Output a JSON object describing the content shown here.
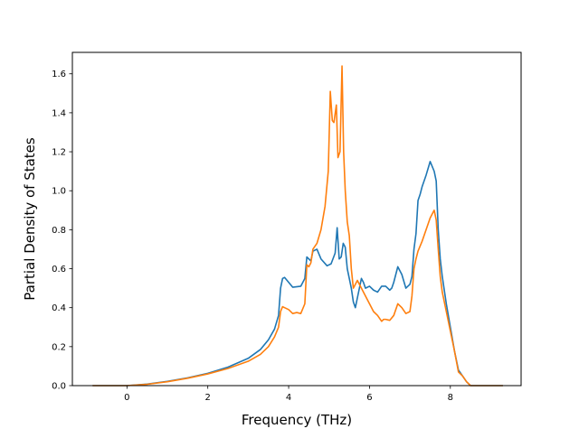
{
  "chart_data": {
    "type": "line",
    "title": "",
    "xlabel": "Frequency (THz)",
    "ylabel": "Partial Density of States",
    "xlim": [
      -1.35,
      9.75
    ],
    "ylim": [
      0.0,
      1.71
    ],
    "xticks": [
      0,
      2,
      4,
      6,
      8
    ],
    "yticks": [
      0.0,
      0.2,
      0.4,
      0.6,
      0.8,
      1.0,
      1.2,
      1.4,
      1.6
    ],
    "xtick_labels": [
      "0",
      "2",
      "4",
      "6",
      "8"
    ],
    "ytick_labels": [
      "0.0",
      "0.2",
      "0.4",
      "0.6",
      "0.8",
      "1.0",
      "1.2",
      "1.4",
      "1.6"
    ],
    "grid": false,
    "legend": "none",
    "series": [
      {
        "color": "#1f77b4",
        "x": [
          -0.85,
          -0.5,
          0.0,
          0.5,
          1.0,
          1.5,
          2.0,
          2.5,
          3.0,
          3.3,
          3.5,
          3.65,
          3.75,
          3.8,
          3.85,
          3.9,
          4.0,
          4.1,
          4.3,
          4.4,
          4.45,
          4.5,
          4.55,
          4.6,
          4.7,
          4.8,
          4.95,
          5.05,
          5.15,
          5.2,
          5.25,
          5.3,
          5.35,
          5.4,
          5.45,
          5.5,
          5.55,
          5.6,
          5.65,
          5.7,
          5.8,
          5.85,
          5.9,
          6.0,
          6.1,
          6.2,
          6.3,
          6.4,
          6.5,
          6.55,
          6.6,
          6.7,
          6.8,
          6.9,
          7.0,
          7.05,
          7.1,
          7.15,
          7.2,
          7.25,
          7.3,
          7.4,
          7.5,
          7.6,
          7.65,
          7.7,
          7.75,
          7.8,
          7.9,
          8.0,
          8.1,
          8.2,
          8.3,
          8.4,
          8.5,
          8.6,
          9.0,
          9.3
        ],
        "y": [
          0.0,
          0.0,
          0.0,
          0.008,
          0.022,
          0.04,
          0.063,
          0.095,
          0.14,
          0.185,
          0.235,
          0.29,
          0.36,
          0.5,
          0.55,
          0.555,
          0.53,
          0.505,
          0.51,
          0.55,
          0.66,
          0.65,
          0.64,
          0.69,
          0.7,
          0.65,
          0.615,
          0.625,
          0.68,
          0.81,
          0.65,
          0.66,
          0.73,
          0.71,
          0.6,
          0.55,
          0.5,
          0.43,
          0.4,
          0.45,
          0.55,
          0.53,
          0.5,
          0.51,
          0.49,
          0.48,
          0.51,
          0.51,
          0.49,
          0.5,
          0.53,
          0.61,
          0.57,
          0.5,
          0.52,
          0.56,
          0.7,
          0.78,
          0.95,
          0.98,
          1.02,
          1.08,
          1.15,
          1.1,
          1.05,
          0.8,
          0.65,
          0.56,
          0.42,
          0.3,
          0.18,
          0.08,
          0.05,
          0.02,
          0.0,
          0.0,
          0.0,
          0.0
        ]
      },
      {
        "color": "#ff7f0e",
        "x": [
          -0.85,
          -0.5,
          0.0,
          0.5,
          1.0,
          1.5,
          2.0,
          2.5,
          3.0,
          3.3,
          3.5,
          3.65,
          3.75,
          3.8,
          3.85,
          3.9,
          4.0,
          4.1,
          4.2,
          4.3,
          4.4,
          4.45,
          4.5,
          4.55,
          4.6,
          4.7,
          4.8,
          4.9,
          4.98,
          5.03,
          5.08,
          5.12,
          5.18,
          5.22,
          5.27,
          5.32,
          5.36,
          5.4,
          5.45,
          5.5,
          5.55,
          5.6,
          5.7,
          5.8,
          5.9,
          6.0,
          6.1,
          6.2,
          6.3,
          6.35,
          6.4,
          6.5,
          6.6,
          6.7,
          6.8,
          6.9,
          7.0,
          7.05,
          7.1,
          7.15,
          7.2,
          7.3,
          7.4,
          7.5,
          7.6,
          7.65,
          7.7,
          7.75,
          7.8,
          7.9,
          8.0,
          8.1,
          8.2,
          8.3,
          8.4,
          8.5,
          8.6,
          9.0,
          9.3
        ],
        "y": [
          0.0,
          0.0,
          0.0,
          0.007,
          0.02,
          0.038,
          0.06,
          0.088,
          0.125,
          0.16,
          0.2,
          0.25,
          0.3,
          0.38,
          0.405,
          0.4,
          0.39,
          0.37,
          0.375,
          0.37,
          0.42,
          0.62,
          0.61,
          0.63,
          0.7,
          0.73,
          0.8,
          0.92,
          1.1,
          1.51,
          1.36,
          1.35,
          1.44,
          1.17,
          1.2,
          1.64,
          1.2,
          1.0,
          0.84,
          0.77,
          0.6,
          0.5,
          0.54,
          0.5,
          0.46,
          0.42,
          0.38,
          0.36,
          0.33,
          0.34,
          0.34,
          0.335,
          0.36,
          0.42,
          0.4,
          0.37,
          0.38,
          0.46,
          0.6,
          0.65,
          0.69,
          0.74,
          0.8,
          0.86,
          0.9,
          0.85,
          0.7,
          0.56,
          0.48,
          0.38,
          0.28,
          0.18,
          0.07,
          0.05,
          0.02,
          0.0,
          0.0,
          0.0,
          0.0
        ]
      }
    ]
  }
}
